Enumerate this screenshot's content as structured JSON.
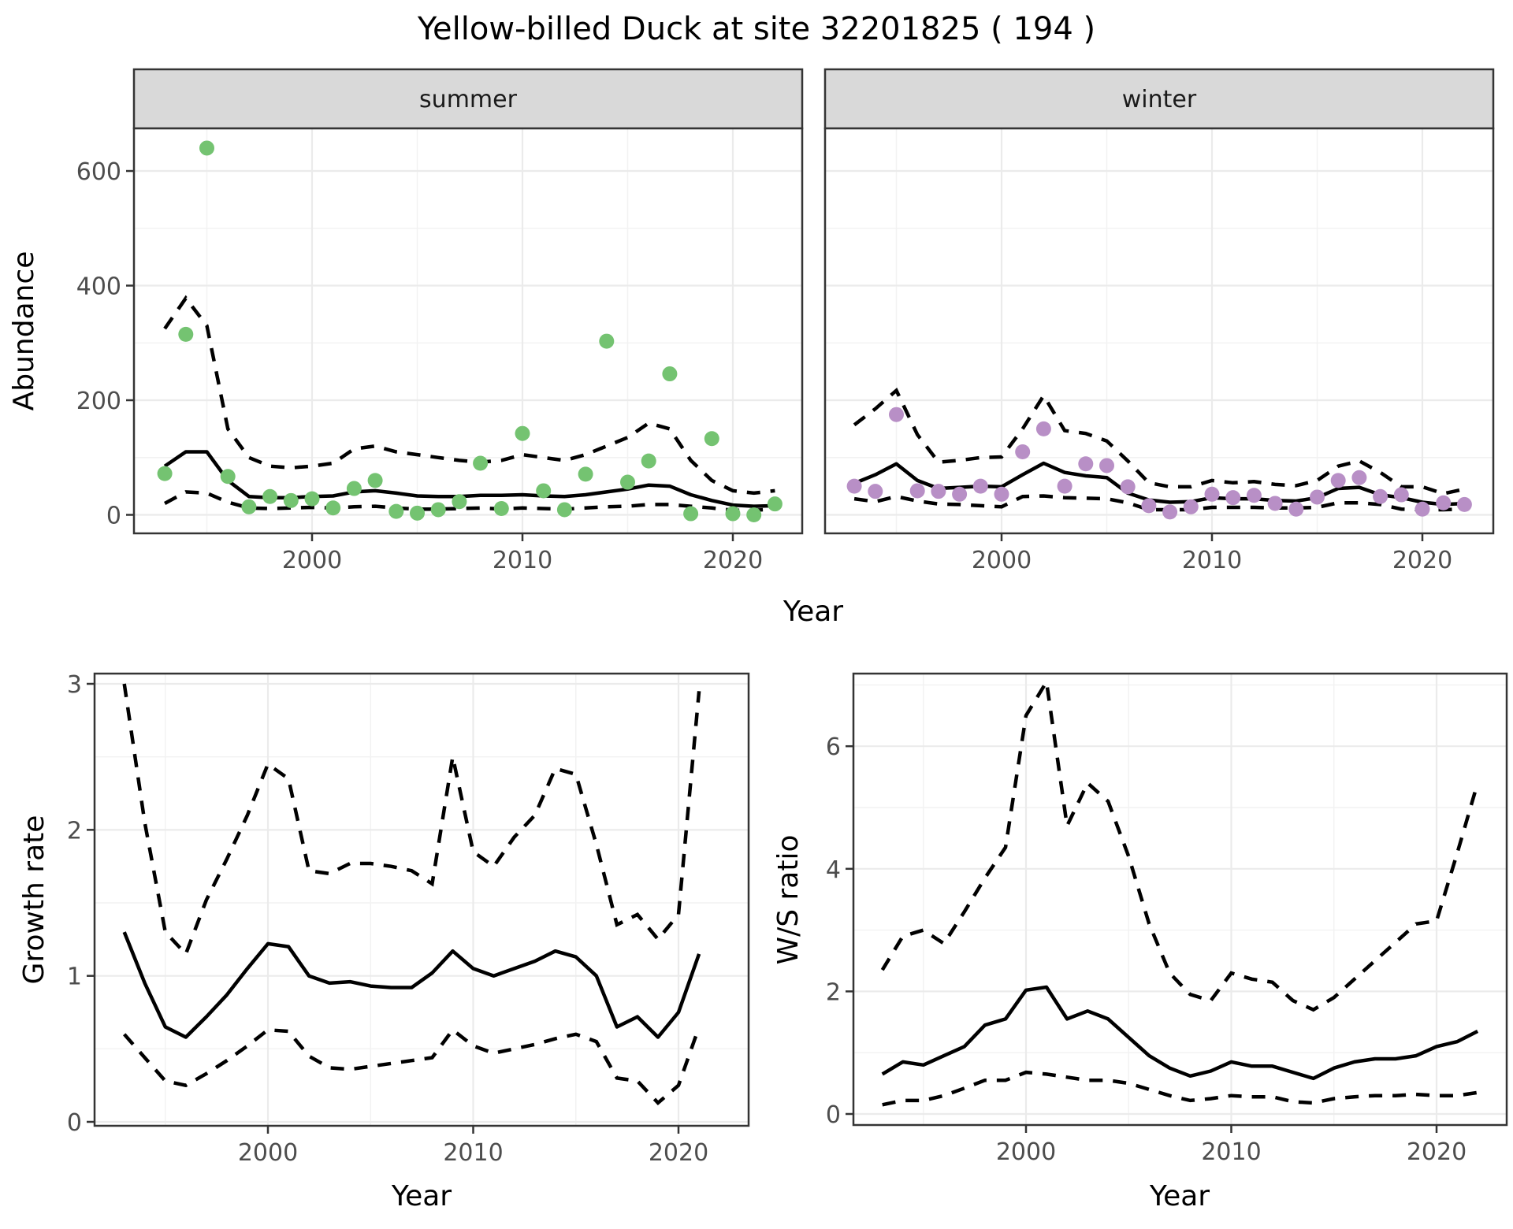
{
  "title": "Yellow-billed Duck at site 32201825 ( 194 )",
  "colors": {
    "summer_dot": "#74C371",
    "winter_dot": "#B88FC6",
    "line": "#000000",
    "strip_bg": "#D9D9D9",
    "grid_major": "#EBEBEB",
    "grid_minor": "#F2F2F2",
    "panel_border": "#343434",
    "tick_text": "#4D4D4D"
  },
  "chart_data": [
    {
      "id": "abundance",
      "type": "line",
      "ylabel": "Abundance",
      "xlabel": "Year",
      "x": [
        1993,
        1994,
        1995,
        1996,
        1997,
        1998,
        1999,
        2000,
        2001,
        2002,
        2003,
        2004,
        2005,
        2006,
        2007,
        2008,
        2009,
        2010,
        2011,
        2012,
        2013,
        2014,
        2015,
        2016,
        2017,
        2018,
        2019,
        2020,
        2021,
        2022
      ],
      "xlim": [
        1991.5,
        2023.5
      ],
      "ylim": [
        -32,
        674
      ],
      "xticks": [
        2000,
        2010,
        2020
      ],
      "yticks": [
        0,
        200,
        400,
        600
      ],
      "legend": "none",
      "grid": true,
      "facets": [
        {
          "label": "summer",
          "dot_color": "#74C371",
          "observed": [
            72,
            315,
            640,
            67,
            14,
            32,
            25,
            28,
            12,
            46,
            60,
            6,
            3,
            9,
            23,
            90,
            11,
            142,
            42,
            9,
            71,
            303,
            57,
            94,
            246,
            2,
            133,
            2,
            0,
            19
          ],
          "trend": [
            85,
            110,
            110,
            60,
            32,
            30,
            30,
            32,
            33,
            40,
            42,
            38,
            33,
            32,
            32,
            34,
            34,
            35,
            33,
            32,
            35,
            40,
            45,
            52,
            50,
            35,
            25,
            17,
            15,
            16
          ],
          "upper_ci": [
            325,
            378,
            330,
            150,
            100,
            85,
            82,
            85,
            90,
            115,
            120,
            110,
            105,
            100,
            95,
            92,
            95,
            105,
            100,
            95,
            105,
            120,
            135,
            160,
            150,
            95,
            60,
            42,
            38,
            42
          ],
          "lower_ci": [
            20,
            40,
            38,
            22,
            12,
            11,
            12,
            13,
            12,
            14,
            15,
            12,
            10,
            10,
            11,
            12,
            10,
            12,
            11,
            10,
            12,
            14,
            15,
            18,
            18,
            15,
            12,
            8,
            8,
            10
          ]
        },
        {
          "label": "winter",
          "dot_color": "#B88FC6",
          "observed": [
            50,
            41,
            175,
            42,
            41,
            36,
            50,
            36,
            110,
            150,
            50,
            89,
            86,
            49,
            16,
            5,
            14,
            36,
            30,
            34,
            20,
            10,
            31,
            60,
            65,
            32,
            35,
            10,
            21,
            18
          ],
          "trend": [
            55,
            70,
            89,
            60,
            46,
            48,
            50,
            49,
            70,
            90,
            74,
            68,
            65,
            38,
            26,
            22,
            23,
            30,
            28,
            28,
            25,
            24,
            30,
            46,
            48,
            35,
            30,
            22,
            18,
            20
          ],
          "upper_ci": [
            157,
            185,
            217,
            140,
            92,
            95,
            100,
            101,
            150,
            208,
            147,
            142,
            129,
            94,
            56,
            49,
            49,
            60,
            56,
            58,
            53,
            51,
            60,
            85,
            94,
            74,
            49,
            49,
            37,
            45
          ],
          "lower_ci": [
            28,
            23,
            32,
            24,
            19,
            18,
            16,
            14,
            32,
            33,
            30,
            29,
            28,
            21,
            9,
            9,
            9,
            13,
            13,
            13,
            12,
            12,
            13,
            21,
            21,
            18,
            10,
            9,
            9,
            10
          ]
        }
      ]
    },
    {
      "id": "growth_rate",
      "type": "line",
      "ylabel": "Growth rate",
      "xlabel": "Year",
      "x": [
        1993,
        1994,
        1995,
        1996,
        1997,
        1998,
        1999,
        2000,
        2001,
        2002,
        2003,
        2004,
        2005,
        2006,
        2007,
        2008,
        2009,
        2010,
        2011,
        2012,
        2013,
        2014,
        2015,
        2016,
        2017,
        2018,
        2019,
        2020,
        2021
      ],
      "xlim": [
        1991.5,
        2023.5
      ],
      "ylim": [
        0,
        3.07
      ],
      "xticks": [
        2000,
        2010,
        2020
      ],
      "yticks": [
        0,
        1,
        2,
        3
      ],
      "trend": [
        1.3,
        0.95,
        0.65,
        0.58,
        0.72,
        0.87,
        1.05,
        1.22,
        1.2,
        1.0,
        0.95,
        0.96,
        0.93,
        0.92,
        0.92,
        1.02,
        1.17,
        1.05,
        1.0,
        1.05,
        1.1,
        1.17,
        1.13,
        1.0,
        0.65,
        0.72,
        0.58,
        0.75,
        1.15
      ],
      "upper_ci": [
        3.0,
        2.05,
        1.3,
        1.15,
        1.52,
        1.8,
        2.1,
        2.45,
        2.35,
        1.72,
        1.7,
        1.77,
        1.77,
        1.75,
        1.72,
        1.63,
        2.5,
        1.85,
        1.75,
        1.95,
        2.1,
        2.42,
        2.38,
        1.9,
        1.35,
        1.42,
        1.25,
        1.42,
        2.95
      ],
      "lower_ci": [
        0.6,
        0.44,
        0.28,
        0.25,
        0.33,
        0.42,
        0.52,
        0.63,
        0.62,
        0.45,
        0.37,
        0.36,
        0.38,
        0.4,
        0.42,
        0.44,
        0.63,
        0.52,
        0.47,
        0.5,
        0.53,
        0.57,
        0.6,
        0.55,
        0.3,
        0.28,
        0.13,
        0.25,
        0.65
      ]
    },
    {
      "id": "ws_ratio",
      "type": "line",
      "ylabel": "W/S ratio",
      "xlabel": "Year",
      "x": [
        1993,
        1994,
        1995,
        1996,
        1997,
        1998,
        1999,
        2000,
        2001,
        2002,
        2003,
        2004,
        2005,
        2006,
        2007,
        2008,
        2009,
        2010,
        2011,
        2012,
        2013,
        2014,
        2015,
        2016,
        2017,
        2018,
        2019,
        2020,
        2021,
        2022
      ],
      "xlim": [
        1991.5,
        2023.5
      ],
      "ylim": [
        -0.15,
        7.2
      ],
      "xticks": [
        2000,
        2010,
        2020
      ],
      "yticks": [
        0,
        2,
        4,
        6
      ],
      "trend": [
        0.65,
        0.85,
        0.8,
        0.95,
        1.1,
        1.45,
        1.55,
        2.02,
        2.07,
        1.55,
        1.68,
        1.55,
        1.25,
        0.95,
        0.75,
        0.62,
        0.7,
        0.85,
        0.78,
        0.78,
        0.68,
        0.58,
        0.75,
        0.85,
        0.9,
        0.9,
        0.95,
        1.1,
        1.18,
        1.35
      ],
      "upper_ci": [
        2.35,
        2.9,
        3.0,
        2.78,
        3.3,
        3.85,
        4.35,
        6.5,
        7.05,
        4.7,
        5.4,
        5.1,
        4.2,
        3.1,
        2.3,
        1.95,
        1.85,
        2.3,
        2.2,
        2.15,
        1.85,
        1.7,
        1.9,
        2.2,
        2.5,
        2.8,
        3.1,
        3.15,
        4.25,
        5.4
      ],
      "lower_ci": [
        0.15,
        0.22,
        0.22,
        0.3,
        0.42,
        0.55,
        0.55,
        0.68,
        0.65,
        0.6,
        0.55,
        0.55,
        0.5,
        0.4,
        0.3,
        0.22,
        0.25,
        0.3,
        0.28,
        0.28,
        0.2,
        0.18,
        0.25,
        0.28,
        0.3,
        0.3,
        0.32,
        0.3,
        0.3,
        0.35
      ]
    }
  ]
}
